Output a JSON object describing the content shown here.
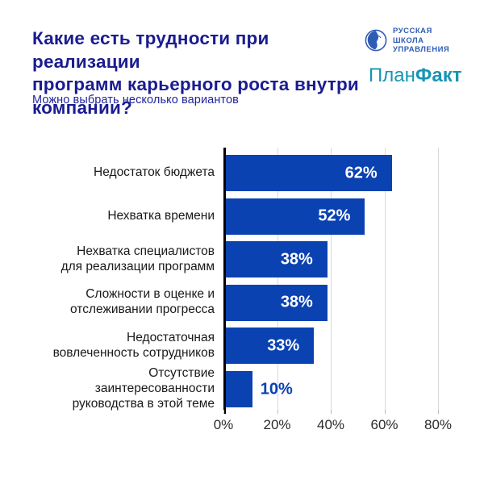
{
  "header": {
    "title": "Какие есть трудности при реализации\nпрограмм карьерного роста внутри\nкомпании?",
    "subtitle": "Можно выбрать несколько вариантов"
  },
  "logos": {
    "rsu": {
      "text": "РУССКАЯ\nШКОЛА\nУПРАВЛЕНИЯ",
      "icon": "rsu-face-in-circle",
      "color": "#2E5CB5"
    },
    "planfact": {
      "part1": "План",
      "part2": "Факт",
      "color": "#1795B4"
    }
  },
  "chart_data": {
    "type": "bar",
    "orientation": "horizontal",
    "title": "Какие есть трудности при реализации программ карьерного роста внутри компании?",
    "subtitle": "Можно выбрать несколько вариантов",
    "categories": [
      "Недостаток бюджета",
      "Нехватка времени",
      "Нехватка специалистов\nдля реализации программ",
      "Сложности в оценке и\nотслеживании прогресса",
      "Недостаточная\nвовлеченность сотрудников",
      "Отсутствие\nзаинтересованности\nруководства в этой теме"
    ],
    "values": [
      62,
      52,
      38,
      38,
      33,
      10
    ],
    "value_labels": [
      "62%",
      "52%",
      "38%",
      "38%",
      "33%",
      "10%"
    ],
    "value_label_placement": [
      "inside",
      "inside",
      "inside",
      "inside",
      "inside",
      "outside"
    ],
    "xticks": [
      "0%",
      "20%",
      "40%",
      "60%",
      "80%"
    ],
    "xtick_values": [
      0,
      20,
      40,
      60,
      80
    ],
    "xlim": [
      0,
      85
    ],
    "grid": true,
    "legend": "none",
    "bar_color": "#0A42B2",
    "value_label_inside_color": "#FFFFFF",
    "value_label_outside_color": "#0A42B2",
    "gridline_color": "#D9D9D9",
    "axis_color": "#000000",
    "tick_label_color": "#2B2B2B",
    "category_label_color": "#191919"
  }
}
